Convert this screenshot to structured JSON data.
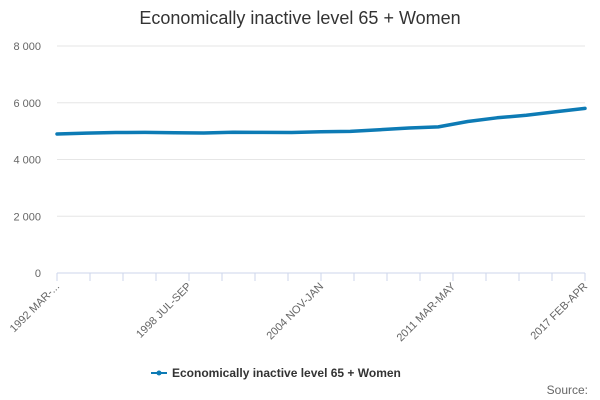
{
  "chart_data": {
    "type": "line",
    "title": "Economically inactive level 65 + Women",
    "xlabel": "",
    "ylabel": "",
    "ylim": [
      0,
      8000
    ],
    "yticks": [
      0,
      2000,
      4000,
      6000,
      8000
    ],
    "ytick_labels": [
      "0",
      "2 000",
      "4 000",
      "6 000",
      "8 000"
    ],
    "xtick_labels": [
      "1992 MAR-...",
      "1998 JUL-SEP",
      "2004 NOV-JAN",
      "2011 MAR-MAY",
      "2017 FEB-APR"
    ],
    "x_start": "1992 MAR-MAY",
    "x_end": "2017 FEB-APR",
    "grid": true,
    "legend_position": "bottom",
    "series": [
      {
        "name": "Economically inactive level 65 + Women",
        "color": "#0d7bb5",
        "values": [
          4900,
          4930,
          4950,
          4955,
          4940,
          4935,
          4960,
          4955,
          4950,
          4980,
          4990,
          5050,
          5110,
          5150,
          5340,
          5470,
          5560,
          5680,
          5800
        ]
      }
    ]
  },
  "source_label": "Source:"
}
